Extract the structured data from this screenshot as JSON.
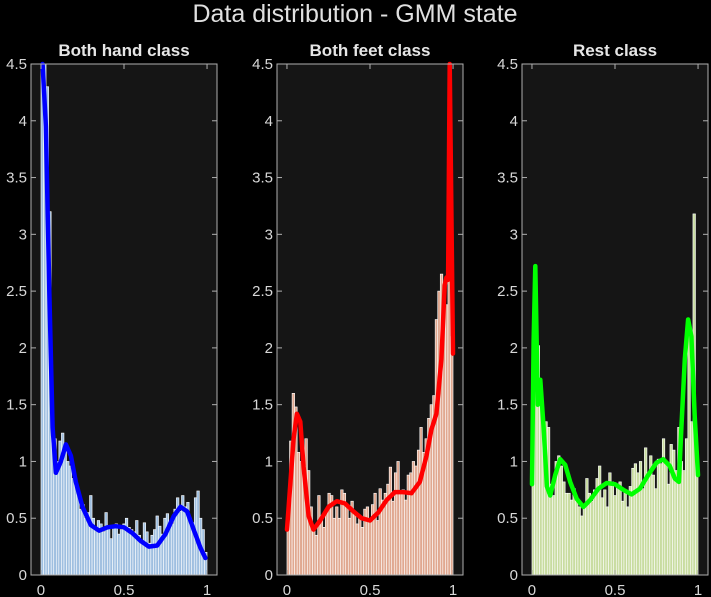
{
  "title": "Data distribution - GMM state",
  "chart_data": [
    {
      "type": "bar",
      "title": "Both hand class",
      "xlim": [
        0,
        1
      ],
      "ylim": [
        0,
        4.5
      ],
      "xticks": [
        "0",
        "0.5",
        "1"
      ],
      "yticks": [
        "0",
        "0.5",
        "1",
        "1.5",
        "2",
        "2.5",
        "3",
        "3.5",
        "4",
        "4.5"
      ],
      "bar_color": "#9fbfe0",
      "curve_color": "#0000ff",
      "histogram": [
        4.5,
        4.5,
        4.3,
        3.2,
        1.22,
        1.2,
        1.0,
        1.18,
        1.25,
        1.15,
        1.0,
        0.96,
        0.85,
        0.85,
        0.7,
        0.58,
        0.62,
        0.5,
        0.55,
        0.7,
        0.5,
        0.4,
        0.48,
        0.45,
        0.38,
        0.55,
        0.42,
        0.32,
        0.44,
        0.45,
        0.36,
        0.4,
        0.45,
        0.5,
        0.42,
        0.4,
        0.38,
        0.48,
        0.35,
        0.3,
        0.46,
        0.38,
        0.28,
        0.35,
        0.4,
        0.52,
        0.43,
        0.36,
        0.5,
        0.54,
        0.42,
        0.45,
        0.58,
        0.68,
        0.56,
        0.7,
        0.6,
        0.64,
        0.5,
        0.46,
        0.68,
        0.74,
        0.5,
        0.4,
        0.2
      ],
      "curve": [
        [
          0.01,
          4.5
        ],
        [
          0.03,
          3.95
        ],
        [
          0.05,
          2.5
        ],
        [
          0.07,
          1.3
        ],
        [
          0.09,
          0.9
        ],
        [
          0.12,
          1.0
        ],
        [
          0.15,
          1.15
        ],
        [
          0.18,
          1.05
        ],
        [
          0.21,
          0.82
        ],
        [
          0.25,
          0.6
        ],
        [
          0.3,
          0.44
        ],
        [
          0.35,
          0.39
        ],
        [
          0.4,
          0.42
        ],
        [
          0.45,
          0.43
        ],
        [
          0.5,
          0.42
        ],
        [
          0.55,
          0.37
        ],
        [
          0.6,
          0.3
        ],
        [
          0.65,
          0.25
        ],
        [
          0.7,
          0.26
        ],
        [
          0.75,
          0.36
        ],
        [
          0.8,
          0.52
        ],
        [
          0.84,
          0.6
        ],
        [
          0.88,
          0.56
        ],
        [
          0.92,
          0.4
        ],
        [
          0.96,
          0.24
        ],
        [
          0.99,
          0.15
        ]
      ]
    },
    {
      "type": "bar",
      "title": "Both feet class",
      "xlim": [
        0,
        1
      ],
      "ylim": [
        0,
        4.5
      ],
      "xticks": [
        "0",
        "0.5",
        "1"
      ],
      "yticks": [
        "0",
        "0.5",
        "1",
        "1.5",
        "2",
        "2.5",
        "3",
        "3.5",
        "4",
        "4.5"
      ],
      "bar_color": "#e0a890",
      "curve_color": "#ff0000",
      "histogram": [
        0.5,
        1.18,
        1.6,
        1.48,
        1.08,
        1.0,
        1.05,
        1.2,
        0.92,
        0.6,
        0.42,
        0.35,
        0.7,
        0.5,
        0.42,
        0.58,
        0.72,
        0.7,
        0.5,
        0.6,
        0.5,
        0.75,
        0.72,
        0.6,
        0.5,
        0.65,
        0.55,
        0.45,
        0.5,
        0.42,
        0.58,
        0.6,
        0.5,
        0.62,
        0.72,
        0.48,
        0.76,
        0.66,
        0.72,
        0.8,
        0.95,
        0.65,
        0.9,
        1.0,
        0.72,
        0.75,
        0.66,
        0.88,
        0.9,
        1.0,
        0.96,
        1.1,
        1.3,
        1.08,
        1.2,
        1.38,
        1.5,
        1.58,
        2.25,
        2.5,
        2.65,
        2.3,
        2.38,
        4.5,
        2.1
      ],
      "curve": [
        [
          0.0,
          0.4
        ],
        [
          0.02,
          0.8
        ],
        [
          0.04,
          1.2
        ],
        [
          0.06,
          1.42
        ],
        [
          0.08,
          1.35
        ],
        [
          0.1,
          0.95
        ],
        [
          0.13,
          0.52
        ],
        [
          0.16,
          0.4
        ],
        [
          0.2,
          0.48
        ],
        [
          0.25,
          0.6
        ],
        [
          0.3,
          0.65
        ],
        [
          0.35,
          0.63
        ],
        [
          0.4,
          0.56
        ],
        [
          0.45,
          0.5
        ],
        [
          0.5,
          0.48
        ],
        [
          0.55,
          0.55
        ],
        [
          0.6,
          0.66
        ],
        [
          0.65,
          0.73
        ],
        [
          0.7,
          0.73
        ],
        [
          0.75,
          0.72
        ],
        [
          0.8,
          0.82
        ],
        [
          0.84,
          1.05
        ],
        [
          0.87,
          1.28
        ],
        [
          0.9,
          1.42
        ],
        [
          0.93,
          1.9
        ],
        [
          0.95,
          2.55
        ],
        [
          0.96,
          2.62
        ],
        [
          0.97,
          2.6
        ],
        [
          0.98,
          4.5
        ],
        [
          1.0,
          1.95
        ]
      ]
    },
    {
      "type": "bar",
      "title": "Rest class",
      "xlim": [
        0,
        1
      ],
      "ylim": [
        0,
        4.5
      ],
      "xticks": [
        "0",
        "0.5",
        "1"
      ],
      "yticks": [
        "0",
        "0.5",
        "1",
        "1.5",
        "2",
        "2.5",
        "3",
        "3.5",
        "4",
        "4.5"
      ],
      "bar_color": "#c8dca0",
      "curve_color": "#00ff00",
      "histogram": [
        1.1,
        2.0,
        2.02,
        1.72,
        1.25,
        1.35,
        1.3,
        0.8,
        0.7,
        1.0,
        1.05,
        0.96,
        0.82,
        0.72,
        0.72,
        0.66,
        0.76,
        0.65,
        0.6,
        0.52,
        0.6,
        0.85,
        0.72,
        0.65,
        0.75,
        0.85,
        0.96,
        0.68,
        0.75,
        0.6,
        0.9,
        0.82,
        0.7,
        0.78,
        0.82,
        0.65,
        0.75,
        0.6,
        0.78,
        0.94,
        0.98,
        0.9,
        1.0,
        0.76,
        1.12,
        0.9,
        1.05,
        0.88,
        0.76,
        1.02,
        0.98,
        1.2,
        1.0,
        0.8,
        1.15,
        1.1,
        0.92,
        1.3,
        1.0,
        0.92,
        1.2,
        2.2,
        1.35,
        3.18,
        1.0
      ],
      "curve": [
        [
          0.0,
          0.8
        ],
        [
          0.01,
          2.05
        ],
        [
          0.02,
          2.72
        ],
        [
          0.035,
          1.5
        ],
        [
          0.05,
          1.72
        ],
        [
          0.07,
          1.3
        ],
        [
          0.09,
          0.78
        ],
        [
          0.11,
          0.7
        ],
        [
          0.14,
          0.88
        ],
        [
          0.17,
          1.02
        ],
        [
          0.2,
          0.97
        ],
        [
          0.23,
          0.82
        ],
        [
          0.27,
          0.67
        ],
        [
          0.31,
          0.6
        ],
        [
          0.35,
          0.66
        ],
        [
          0.4,
          0.76
        ],
        [
          0.45,
          0.81
        ],
        [
          0.5,
          0.8
        ],
        [
          0.55,
          0.75
        ],
        [
          0.6,
          0.71
        ],
        [
          0.65,
          0.76
        ],
        [
          0.7,
          0.88
        ],
        [
          0.75,
          0.99
        ],
        [
          0.79,
          1.02
        ],
        [
          0.83,
          0.96
        ],
        [
          0.86,
          0.85
        ],
        [
          0.885,
          0.82
        ],
        [
          0.9,
          1.3
        ],
        [
          0.92,
          1.9
        ],
        [
          0.94,
          2.25
        ],
        [
          0.96,
          2.1
        ],
        [
          0.98,
          1.4
        ],
        [
          1.0,
          0.88
        ]
      ]
    }
  ]
}
